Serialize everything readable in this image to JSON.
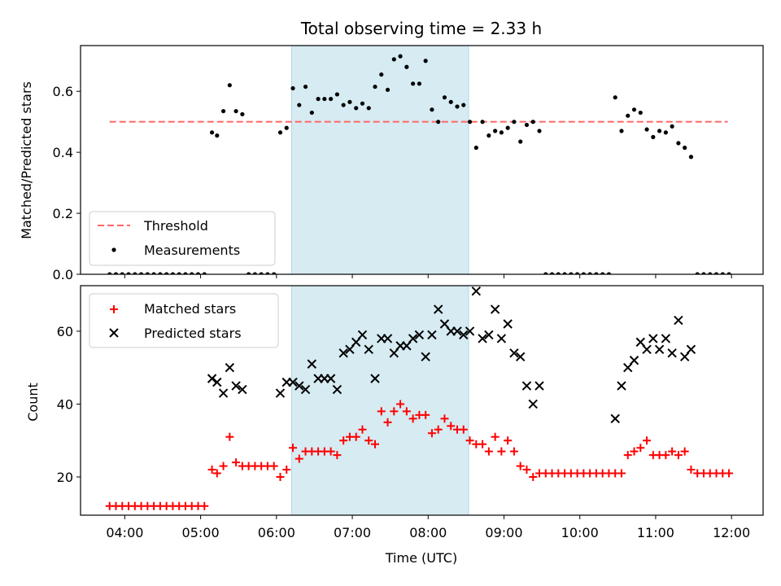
{
  "title": "Total observing time = 2.33 h",
  "xlabel": "Time (UTC)",
  "x_ticks": [
    "04:00",
    "05:00",
    "06:00",
    "07:00",
    "08:00",
    "09:00",
    "10:00",
    "11:00",
    "12:00"
  ],
  "colors": {
    "shade": "#add8e6",
    "threshold": "#ff6666",
    "measurements": "#000000",
    "matched": "#ff0000",
    "predicted": "#000000"
  },
  "chart_data": [
    {
      "type": "scatter",
      "ylabel": "Matched/Predicted stars",
      "ylim": [
        0.0,
        0.75
      ],
      "y_ticks": [
        "0.0",
        "0.2",
        "0.4",
        "0.6"
      ],
      "xlim": [
        "03:25",
        "12:25"
      ],
      "shaded_interval": [
        "06:12",
        "08:32"
      ],
      "legend_position": "lower-left",
      "threshold": {
        "name": "Threshold",
        "value": 0.5,
        "x_range": [
          "03:48",
          "11:57"
        ]
      },
      "series": [
        {
          "name": "Measurements",
          "points": [
            [
              "03:48",
              0
            ],
            [
              "03:53",
              0
            ],
            [
              "03:58",
              0
            ],
            [
              "04:03",
              0
            ],
            [
              "04:08",
              0
            ],
            [
              "04:13",
              0
            ],
            [
              "04:18",
              0
            ],
            [
              "04:23",
              0
            ],
            [
              "04:28",
              0
            ],
            [
              "04:33",
              0
            ],
            [
              "04:38",
              0
            ],
            [
              "04:43",
              0
            ],
            [
              "04:48",
              0
            ],
            [
              "04:53",
              0
            ],
            [
              "04:58",
              0
            ],
            [
              "05:03",
              0
            ],
            [
              "05:09",
              0.465
            ],
            [
              "05:13",
              0.455
            ],
            [
              "05:18",
              0.535
            ],
            [
              "05:23",
              0.62
            ],
            [
              "05:28",
              0.535
            ],
            [
              "05:33",
              0.525
            ],
            [
              "05:38",
              0
            ],
            [
              "05:43",
              0
            ],
            [
              "05:48",
              0
            ],
            [
              "05:53",
              0
            ],
            [
              "05:58",
              0
            ],
            [
              "06:03",
              0.465
            ],
            [
              "06:08",
              0.48
            ],
            [
              "06:13",
              0.61
            ],
            [
              "06:18",
              0.555
            ],
            [
              "06:23",
              0.615
            ],
            [
              "06:28",
              0.53
            ],
            [
              "06:33",
              0.575
            ],
            [
              "06:38",
              0.575
            ],
            [
              "06:43",
              0.575
            ],
            [
              "06:48",
              0.59
            ],
            [
              "06:53",
              0.555
            ],
            [
              "06:58",
              0.565
            ],
            [
              "07:03",
              0.545
            ],
            [
              "07:08",
              0.56
            ],
            [
              "07:13",
              0.545
            ],
            [
              "07:18",
              0.615
            ],
            [
              "07:23",
              0.655
            ],
            [
              "07:28",
              0.605
            ],
            [
              "07:33",
              0.705
            ],
            [
              "07:38",
              0.715
            ],
            [
              "07:43",
              0.68
            ],
            [
              "07:48",
              0.625
            ],
            [
              "07:53",
              0.625
            ],
            [
              "07:58",
              0.7
            ],
            [
              "08:03",
              0.54
            ],
            [
              "08:08",
              0.5
            ],
            [
              "08:13",
              0.58
            ],
            [
              "08:18",
              0.565
            ],
            [
              "08:23",
              0.55
            ],
            [
              "08:28",
              0.555
            ],
            [
              "08:33",
              0.5
            ],
            [
              "08:38",
              0.415
            ],
            [
              "08:43",
              0.5
            ],
            [
              "08:48",
              0.455
            ],
            [
              "08:53",
              0.47
            ],
            [
              "08:58",
              0.465
            ],
            [
              "09:03",
              0.48
            ],
            [
              "09:08",
              0.5
            ],
            [
              "09:13",
              0.435
            ],
            [
              "09:18",
              0.49
            ],
            [
              "09:23",
              0.5
            ],
            [
              "09:28",
              0.47
            ],
            [
              "09:33",
              0
            ],
            [
              "09:38",
              0
            ],
            [
              "09:43",
              0
            ],
            [
              "09:48",
              0
            ],
            [
              "09:53",
              0
            ],
            [
              "09:58",
              0
            ],
            [
              "10:03",
              0
            ],
            [
              "10:08",
              0
            ],
            [
              "10:13",
              0
            ],
            [
              "10:18",
              0
            ],
            [
              "10:23",
              0
            ],
            [
              "10:28",
              0.58
            ],
            [
              "10:33",
              0.47
            ],
            [
              "10:38",
              0.52
            ],
            [
              "10:43",
              0.54
            ],
            [
              "10:48",
              0.53
            ],
            [
              "10:53",
              0.475
            ],
            [
              "10:58",
              0.45
            ],
            [
              "11:03",
              0.47
            ],
            [
              "11:08",
              0.465
            ],
            [
              "11:13",
              0.485
            ],
            [
              "11:18",
              0.43
            ],
            [
              "11:23",
              0.415
            ],
            [
              "11:28",
              0.385
            ],
            [
              "11:33",
              0
            ],
            [
              "11:38",
              0
            ],
            [
              "11:43",
              0
            ],
            [
              "11:48",
              0
            ],
            [
              "11:53",
              0
            ],
            [
              "11:58",
              0
            ]
          ]
        }
      ]
    },
    {
      "type": "scatter",
      "ylabel": "Count",
      "ylim": [
        9.5,
        72.5
      ],
      "y_ticks": [
        "20",
        "40",
        "60"
      ],
      "xlim": [
        "03:25",
        "12:25"
      ],
      "shaded_interval": [
        "06:12",
        "08:32"
      ],
      "legend_position": "upper-left",
      "series": [
        {
          "name": "Matched stars",
          "marker": "plus",
          "points": [
            [
              "03:48",
              12
            ],
            [
              "03:53",
              12
            ],
            [
              "03:58",
              12
            ],
            [
              "04:03",
              12
            ],
            [
              "04:08",
              12
            ],
            [
              "04:13",
              12
            ],
            [
              "04:18",
              12
            ],
            [
              "04:23",
              12
            ],
            [
              "04:28",
              12
            ],
            [
              "04:33",
              12
            ],
            [
              "04:38",
              12
            ],
            [
              "04:43",
              12
            ],
            [
              "04:48",
              12
            ],
            [
              "04:53",
              12
            ],
            [
              "04:58",
              12
            ],
            [
              "05:03",
              12
            ],
            [
              "05:09",
              22
            ],
            [
              "05:13",
              21
            ],
            [
              "05:18",
              23
            ],
            [
              "05:23",
              31
            ],
            [
              "05:28",
              24
            ],
            [
              "05:33",
              23
            ],
            [
              "05:38",
              23
            ],
            [
              "05:43",
              23
            ],
            [
              "05:48",
              23
            ],
            [
              "05:53",
              23
            ],
            [
              "05:58",
              23
            ],
            [
              "06:03",
              20
            ],
            [
              "06:08",
              22
            ],
            [
              "06:13",
              28
            ],
            [
              "06:18",
              25
            ],
            [
              "06:23",
              27
            ],
            [
              "06:28",
              27
            ],
            [
              "06:33",
              27
            ],
            [
              "06:38",
              27
            ],
            [
              "06:43",
              27
            ],
            [
              "06:48",
              26
            ],
            [
              "06:53",
              30
            ],
            [
              "06:58",
              31
            ],
            [
              "07:03",
              31
            ],
            [
              "07:08",
              33
            ],
            [
              "07:13",
              30
            ],
            [
              "07:18",
              29
            ],
            [
              "07:23",
              38
            ],
            [
              "07:28",
              35
            ],
            [
              "07:33",
              38
            ],
            [
              "07:38",
              40
            ],
            [
              "07:43",
              38
            ],
            [
              "07:48",
              36
            ],
            [
              "07:53",
              37
            ],
            [
              "07:58",
              37
            ],
            [
              "08:03",
              32
            ],
            [
              "08:08",
              33
            ],
            [
              "08:13",
              36
            ],
            [
              "08:18",
              34
            ],
            [
              "08:23",
              33
            ],
            [
              "08:28",
              33
            ],
            [
              "08:33",
              30
            ],
            [
              "08:38",
              29
            ],
            [
              "08:43",
              29
            ],
            [
              "08:48",
              27
            ],
            [
              "08:53",
              31
            ],
            [
              "08:58",
              27
            ],
            [
              "09:03",
              30
            ],
            [
              "09:08",
              27
            ],
            [
              "09:13",
              23
            ],
            [
              "09:18",
              22
            ],
            [
              "09:23",
              20
            ],
            [
              "09:28",
              21
            ],
            [
              "09:33",
              21
            ],
            [
              "09:38",
              21
            ],
            [
              "09:43",
              21
            ],
            [
              "09:48",
              21
            ],
            [
              "09:53",
              21
            ],
            [
              "09:58",
              21
            ],
            [
              "10:03",
              21
            ],
            [
              "10:08",
              21
            ],
            [
              "10:13",
              21
            ],
            [
              "10:18",
              21
            ],
            [
              "10:23",
              21
            ],
            [
              "10:28",
              21
            ],
            [
              "10:33",
              21
            ],
            [
              "10:38",
              26
            ],
            [
              "10:43",
              27
            ],
            [
              "10:48",
              28
            ],
            [
              "10:53",
              30
            ],
            [
              "10:58",
              26
            ],
            [
              "11:03",
              26
            ],
            [
              "11:08",
              26
            ],
            [
              "11:13",
              27
            ],
            [
              "11:18",
              26
            ],
            [
              "11:23",
              27
            ],
            [
              "11:28",
              22
            ],
            [
              "11:33",
              21
            ],
            [
              "11:38",
              21
            ],
            [
              "11:43",
              21
            ],
            [
              "11:48",
              21
            ],
            [
              "11:53",
              21
            ],
            [
              "11:58",
              21
            ]
          ]
        },
        {
          "name": "Predicted stars",
          "marker": "x",
          "points": [
            [
              "05:09",
              47
            ],
            [
              "05:13",
              46
            ],
            [
              "05:18",
              43
            ],
            [
              "05:23",
              50
            ],
            [
              "05:28",
              45
            ],
            [
              "05:33",
              44
            ],
            [
              "06:03",
              43
            ],
            [
              "06:08",
              46
            ],
            [
              "06:13",
              46
            ],
            [
              "06:18",
              45
            ],
            [
              "06:23",
              44
            ],
            [
              "06:28",
              51
            ],
            [
              "06:33",
              47
            ],
            [
              "06:38",
              47
            ],
            [
              "06:43",
              47
            ],
            [
              "06:48",
              44
            ],
            [
              "06:53",
              54
            ],
            [
              "06:58",
              55
            ],
            [
              "07:03",
              57
            ],
            [
              "07:08",
              59
            ],
            [
              "07:13",
              55
            ],
            [
              "07:18",
              47
            ],
            [
              "07:23",
              58
            ],
            [
              "07:28",
              58
            ],
            [
              "07:33",
              54
            ],
            [
              "07:38",
              56
            ],
            [
              "07:43",
              56
            ],
            [
              "07:48",
              58
            ],
            [
              "07:53",
              59
            ],
            [
              "07:58",
              53
            ],
            [
              "08:03",
              59
            ],
            [
              "08:08",
              66
            ],
            [
              "08:13",
              62
            ],
            [
              "08:18",
              60
            ],
            [
              "08:23",
              60
            ],
            [
              "08:28",
              59
            ],
            [
              "08:33",
              60
            ],
            [
              "08:38",
              71
            ],
            [
              "08:43",
              58
            ],
            [
              "08:48",
              59
            ],
            [
              "08:53",
              66
            ],
            [
              "08:58",
              58
            ],
            [
              "09:03",
              62
            ],
            [
              "09:08",
              54
            ],
            [
              "09:13",
              53
            ],
            [
              "09:18",
              45
            ],
            [
              "09:23",
              40
            ],
            [
              "09:28",
              45
            ],
            [
              "10:28",
              36
            ],
            [
              "10:33",
              45
            ],
            [
              "10:38",
              50
            ],
            [
              "10:43",
              52
            ],
            [
              "10:48",
              57
            ],
            [
              "10:53",
              55
            ],
            [
              "10:58",
              58
            ],
            [
              "11:03",
              55
            ],
            [
              "11:08",
              58
            ],
            [
              "11:13",
              54
            ],
            [
              "11:18",
              63
            ],
            [
              "11:23",
              53
            ],
            [
              "11:28",
              55
            ]
          ]
        }
      ]
    }
  ]
}
